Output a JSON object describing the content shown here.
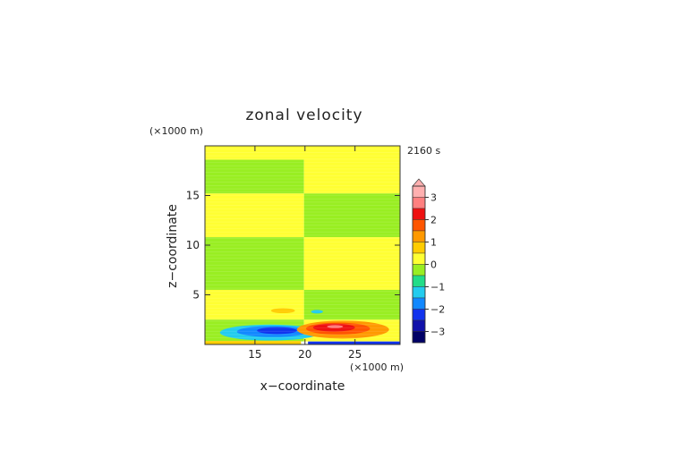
{
  "chart_data": {
    "type": "heatmap",
    "title": "zonal velocity",
    "time_label": "2160 s",
    "xlabel": "x−coordinate",
    "ylabel": "z−coordinate",
    "x_unit": "(×1000 m)",
    "y_unit": "(×1000 m)",
    "xlim": [
      10,
      29.5
    ],
    "ylim": [
      0,
      20
    ],
    "x_ticks": [
      15,
      20,
      25
    ],
    "y_ticks": [
      5,
      10,
      15
    ],
    "colorbar": {
      "tick_values": [
        3,
        2,
        1,
        0,
        -1,
        -2,
        -3
      ],
      "tick_labels": [
        "3",
        "2",
        "1",
        "0",
        "−1",
        "−2",
        "−3"
      ],
      "levels": [
        {
          "min": 3.0,
          "max": 3.5,
          "color": "#ffb0b0"
        },
        {
          "min": 2.5,
          "max": 3.0,
          "color": "#ff8080"
        },
        {
          "min": 2.0,
          "max": 2.5,
          "color": "#ee1111"
        },
        {
          "min": 1.5,
          "max": 2.0,
          "color": "#ff5500"
        },
        {
          "min": 1.0,
          "max": 1.5,
          "color": "#ff9900"
        },
        {
          "min": 0.5,
          "max": 1.0,
          "color": "#ffcc00"
        },
        {
          "min": 0.0,
          "max": 0.5,
          "color": "#ffff33"
        },
        {
          "min": -0.5,
          "max": 0.0,
          "color": "#99ee22"
        },
        {
          "min": -1.0,
          "max": -0.5,
          "color": "#22dd88"
        },
        {
          "min": -1.5,
          "max": -1.0,
          "color": "#22ccee"
        },
        {
          "min": -2.0,
          "max": -1.5,
          "color": "#1188ff"
        },
        {
          "min": -2.5,
          "max": -2.0,
          "color": "#1133ee"
        },
        {
          "min": -3.0,
          "max": -2.5,
          "color": "#1111aa"
        },
        {
          "min": -3.5,
          "max": -3.0,
          "color": "#000066"
        }
      ],
      "extend": "max"
    },
    "regions": [
      {
        "name": "band-1",
        "level": 0.25,
        "x": [
          10,
          29.5
        ],
        "z_lo": 18.6,
        "z_hi": 20
      },
      {
        "name": "band-2-left",
        "level": -0.25,
        "x": [
          10,
          19.9
        ],
        "z_lo": 15.2,
        "z_hi": 18.6
      },
      {
        "name": "band-2-right",
        "level": 0.25,
        "x": [
          19.9,
          29.5
        ],
        "z_lo": 15.2,
        "z_hi": 18.6
      },
      {
        "name": "band-3-left",
        "level": 0.25,
        "x": [
          10,
          19.9
        ],
        "z_lo": 10.8,
        "z_hi": 15.2
      },
      {
        "name": "band-3-right",
        "level": -0.25,
        "x": [
          19.9,
          29.5
        ],
        "z_lo": 10.8,
        "z_hi": 15.2
      },
      {
        "name": "band-4-left",
        "level": -0.25,
        "x": [
          10,
          19.9
        ],
        "z_lo": 5.5,
        "z_hi": 10.8
      },
      {
        "name": "band-4-right",
        "level": 0.25,
        "x": [
          19.9,
          29.5
        ],
        "z_lo": 5.5,
        "z_hi": 10.8
      },
      {
        "name": "band-5-left",
        "level": 0.25,
        "x": [
          10,
          19.9
        ],
        "z_lo": 2.5,
        "z_hi": 5.5
      },
      {
        "name": "band-5-right",
        "level": -0.25,
        "x": [
          19.9,
          29.5
        ],
        "z_lo": 2.5,
        "z_hi": 5.5
      }
    ],
    "features": [
      {
        "name": "lower-left-negative-band",
        "level": -0.25,
        "x": [
          10,
          19.9
        ],
        "z_lo": 0.3,
        "z_hi": 2.5
      },
      {
        "name": "lower-right-positive-band",
        "level": 0.25,
        "x": [
          19.9,
          29.5
        ],
        "z_lo": 0.3,
        "z_hi": 2.5
      },
      {
        "name": "left-jet-outer",
        "level": -1.25,
        "cx": 16.5,
        "cz": 1.2,
        "rx": 5.0,
        "rz": 0.8
      },
      {
        "name": "left-jet-mid",
        "level": -1.75,
        "cx": 16.8,
        "cz": 1.3,
        "rx": 3.6,
        "rz": 0.55
      },
      {
        "name": "left-jet-core",
        "level": -2.25,
        "cx": 17.2,
        "cz": 1.4,
        "rx": 2.0,
        "rz": 0.35
      },
      {
        "name": "right-jet-outer",
        "level": 1.25,
        "cx": 23.8,
        "cz": 1.5,
        "rx": 4.6,
        "rz": 0.9
      },
      {
        "name": "right-jet-mid",
        "level": 1.75,
        "cx": 23.3,
        "cz": 1.6,
        "rx": 3.2,
        "rz": 0.6
      },
      {
        "name": "right-jet-core",
        "level": 2.25,
        "cx": 22.9,
        "cz": 1.7,
        "rx": 2.1,
        "rz": 0.4
      },
      {
        "name": "right-jet-peak",
        "level": 2.75,
        "cx": 23.0,
        "cz": 1.8,
        "rx": 0.8,
        "rz": 0.15
      },
      {
        "name": "left-upper-positive-blob",
        "level": 0.75,
        "cx": 17.8,
        "cz": 3.4,
        "rx": 1.2,
        "rz": 0.25
      },
      {
        "name": "right-upper-negative-blob",
        "level": -1.25,
        "cx": 21.2,
        "cz": 3.3,
        "rx": 0.6,
        "rz": 0.18
      },
      {
        "name": "left-surface-strip",
        "level": 0.75,
        "x": [
          10,
          19.6
        ],
        "z_lo": 0.0,
        "z_hi": 0.35
      },
      {
        "name": "right-surface-strip",
        "level": -2.25,
        "x": [
          20.3,
          29.5
        ],
        "z_lo": 0.0,
        "z_hi": 0.3
      }
    ]
  }
}
